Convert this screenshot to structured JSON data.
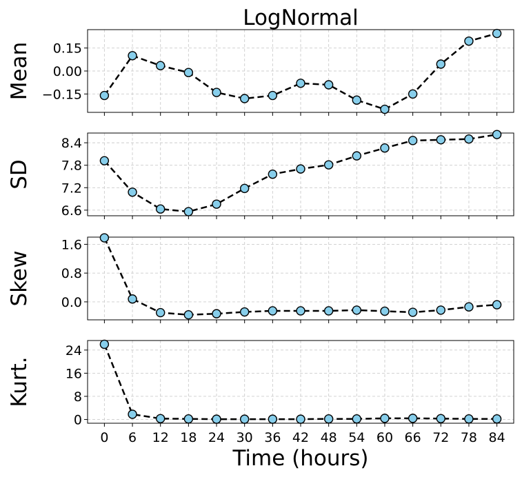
{
  "chart_data": {
    "type": "line",
    "title": "LogNormal",
    "xlabel": "Time (hours)",
    "x": [
      0,
      6,
      12,
      18,
      24,
      30,
      36,
      42,
      48,
      54,
      60,
      66,
      72,
      78,
      84
    ],
    "x_ticks": [
      "0",
      "6",
      "12",
      "18",
      "24",
      "30",
      "36",
      "42",
      "48",
      "54",
      "60",
      "66",
      "72",
      "78",
      "84"
    ],
    "xlim": [
      -3.6,
      87.6
    ],
    "grid": true,
    "colors": {
      "marker_fill": "#87ceeb",
      "line": "#000000",
      "grid": "#cccccc"
    },
    "panels": [
      {
        "ylabel": "Mean",
        "ylim": [
          -0.27,
          0.27
        ],
        "y_ticks": [
          0.15,
          0.0,
          -0.15
        ],
        "y_tick_labels": [
          "0.15",
          "0.00",
          "−0.15"
        ],
        "values": [
          -0.16,
          0.1,
          0.035,
          -0.01,
          -0.14,
          -0.18,
          -0.16,
          -0.08,
          -0.09,
          -0.19,
          -0.25,
          -0.15,
          0.045,
          0.195,
          0.245
        ]
      },
      {
        "ylabel": "SD",
        "ylim": [
          6.45,
          8.66
        ],
        "y_ticks": [
          8.4,
          7.8,
          7.2,
          6.6
        ],
        "y_tick_labels": [
          "8.4",
          "7.8",
          "7.2",
          "6.6"
        ],
        "values": [
          7.92,
          7.08,
          6.63,
          6.56,
          6.76,
          7.18,
          7.56,
          7.7,
          7.81,
          8.05,
          8.26,
          8.46,
          8.48,
          8.5,
          8.62
        ]
      },
      {
        "ylabel": "Skew",
        "ylim": [
          -0.5,
          1.8
        ],
        "y_ticks": [
          1.6,
          0.8,
          0.0
        ],
        "y_tick_labels": [
          "1.6",
          "0.8",
          "0.0"
        ],
        "values": [
          1.78,
          0.08,
          -0.3,
          -0.36,
          -0.33,
          -0.28,
          -0.25,
          -0.25,
          -0.25,
          -0.23,
          -0.26,
          -0.29,
          -0.23,
          -0.14,
          -0.08
        ]
      },
      {
        "ylabel": "Kurt.",
        "ylim": [
          -1.3,
          27.3
        ],
        "y_ticks": [
          24,
          16,
          8,
          0
        ],
        "y_tick_labels": [
          "24",
          "16",
          "8",
          "0"
        ],
        "values": [
          26.0,
          1.8,
          0.3,
          0.2,
          0.1,
          0.1,
          0.1,
          0.1,
          0.2,
          0.2,
          0.4,
          0.4,
          0.3,
          0.2,
          0.2
        ]
      }
    ]
  }
}
